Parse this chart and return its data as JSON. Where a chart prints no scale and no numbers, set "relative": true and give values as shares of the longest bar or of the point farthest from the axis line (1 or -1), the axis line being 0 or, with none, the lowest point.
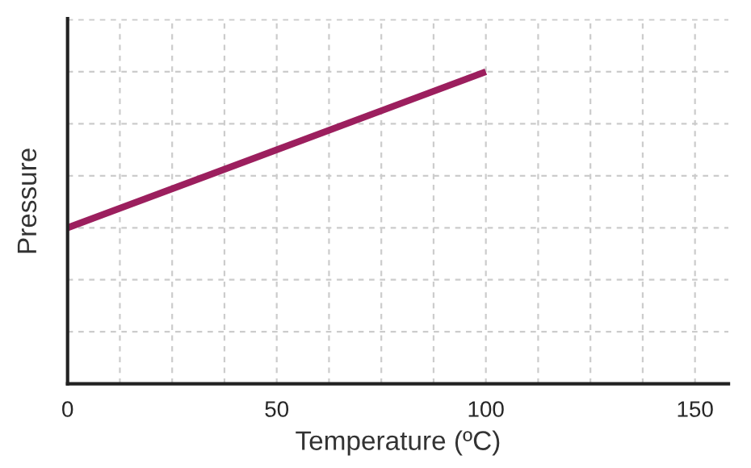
{
  "chart_data": {
    "type": "line",
    "xlabel": "Temperature (ºC)",
    "ylabel": "Pressure",
    "relative": true,
    "x": [
      0,
      100
    ],
    "series": [
      {
        "color": "#9c1f5e",
        "values": [
          0.5,
          1
        ]
      }
    ],
    "xlim": [
      0,
      158
    ],
    "xticks": [
      0,
      {
        "value": 12.5,
        "label": null
      },
      {
        "value": 25,
        "label": null
      },
      {
        "value": 37.5,
        "label": null
      },
      50,
      {
        "value": 62.5,
        "label": null
      },
      {
        "value": 75,
        "label": null
      },
      {
        "value": 87.5,
        "label": null
      },
      100,
      {
        "value": 112.5,
        "label": null
      },
      {
        "value": 125,
        "label": null
      },
      {
        "value": 137.5,
        "label": null
      },
      150
    ],
    "grid": true,
    "marker": "none",
    "line_style": "solid"
  }
}
